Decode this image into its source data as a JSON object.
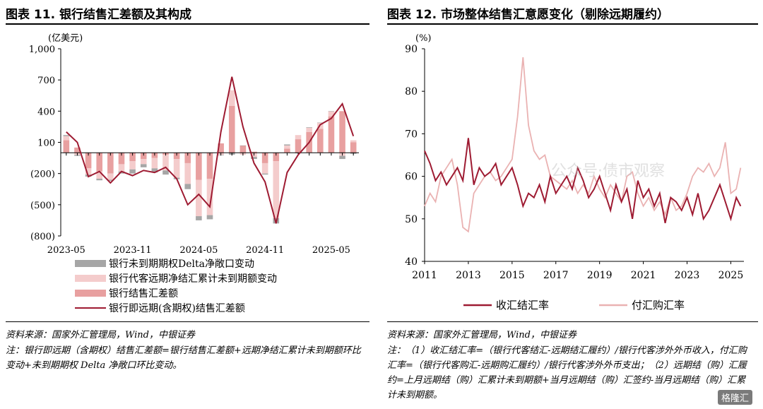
{
  "left": {
    "title": "图表 11. 银行结售汇差额及其构成",
    "source": "资料来源：国家外汇管理局，Wind，中银证券",
    "note": "注：银行即远期（含期权）结售汇差额=银行结售汇差额+远期净结汇累计未到期额环比变动+未到期期权 Delta 净敞口环比变动。"
  },
  "right": {
    "title": "图表 12. 市场整体结售汇意愿变化（剔除远期履约）",
    "source": "资料来源：国家外汇管理局，Wind，中银证券",
    "note": "注：（1）收汇结汇率=（银行代客结汇-远期结汇履约）/银行代客涉外外币收入，付汇购汇率=（银行代客购汇-远期购汇履约）/银行代客涉外外币支出；（2）远期结（购）汇履约=上月远期结（购）汇累计未到期额+当月远期结（购）汇签约-当月远期结（购）汇累计未到期额。"
  },
  "watermark": "公众号·债市观察",
  "logo": "格隆汇",
  "chart_data": [
    {
      "type": "bar",
      "unit": "(亿美元)",
      "categories": [
        "2023-05",
        "2023-06",
        "2023-07",
        "2023-08",
        "2023-09",
        "2023-10",
        "2023-11",
        "2023-12",
        "2024-01",
        "2024-02",
        "2024-03",
        "2024-04",
        "2024-05",
        "2024-06",
        "2024-07",
        "2024-08",
        "2024-09",
        "2024-10",
        "2024-11",
        "2024-12",
        "2025-01",
        "2025-02",
        "2025-03",
        "2025-04",
        "2025-05",
        "2025-06",
        "2025-07"
      ],
      "xticks": [
        "2023-05",
        "2023-11",
        "2024-05",
        "2024-11",
        "2025-05"
      ],
      "yticks": [
        1000,
        700,
        400,
        100,
        -200,
        -500,
        -800
      ],
      "ytick_labels": [
        "1,000",
        "700",
        "400",
        "100",
        "(200)",
        "(500)",
        "(800)"
      ],
      "ylim": [
        -800,
        1000
      ],
      "series": [
        {
          "name": "银行未到期期权Delta净敞口变动",
          "color": "#a6a6a6",
          "type": "bar",
          "values": [
            10,
            -10,
            -20,
            -15,
            -10,
            -20,
            -40,
            -30,
            -40,
            -40,
            -15,
            -50,
            -40,
            -40,
            -5,
            -20,
            0,
            -20,
            -10,
            -50,
            10,
            -5,
            5,
            0,
            0,
            -30,
            -10
          ]
        },
        {
          "name": "银行代客远期净结汇累计未到期额变动",
          "color": "#f4cccc",
          "type": "bar",
          "values": [
            40,
            -20,
            -60,
            -70,
            -60,
            -70,
            -80,
            -50,
            -100,
            -150,
            -180,
            -200,
            -350,
            -350,
            -20,
            150,
            -20,
            -40,
            -100,
            -550,
            30,
            40,
            40,
            60,
            50,
            -30,
            20
          ]
        },
        {
          "name": "银行结售汇差额",
          "color": "#e8a0a0",
          "type": "bar",
          "values": [
            120,
            50,
            -150,
            -180,
            -200,
            -110,
            -80,
            -60,
            -50,
            -20,
            -60,
            -100,
            -260,
            -250,
            90,
            450,
            70,
            10,
            -100,
            -80,
            40,
            130,
            200,
            230,
            350,
            400,
            100
          ]
        },
        {
          "name": "银行即远期(含期权)结售汇差额",
          "color": "#9e1b32",
          "type": "line",
          "values": [
            200,
            100,
            -230,
            -180,
            -290,
            -180,
            -220,
            -170,
            -190,
            -140,
            -250,
            -500,
            -400,
            -520,
            200,
            730,
            250,
            -100,
            -280,
            -680,
            -190,
            -20,
            100,
            270,
            330,
            470,
            160
          ]
        }
      ]
    },
    {
      "type": "line",
      "unit": "(%)",
      "xticks": [
        2011,
        2013,
        2015,
        2017,
        2019,
        2021,
        2023,
        2025
      ],
      "yticks": [
        90,
        80,
        70,
        60,
        50,
        40
      ],
      "ylim": [
        40,
        90
      ],
      "xlim": [
        2011,
        2025.6
      ],
      "series": [
        {
          "name": "收汇结汇率",
          "color": "#9e1b32",
          "x": [
            2011,
            2011.25,
            2011.5,
            2011.75,
            2012,
            2012.25,
            2012.5,
            2012.75,
            2013,
            2013.25,
            2013.5,
            2013.75,
            2014,
            2014.25,
            2014.5,
            2014.75,
            2015,
            2015.25,
            2015.5,
            2015.75,
            2016,
            2016.25,
            2016.5,
            2016.75,
            2017,
            2017.25,
            2017.5,
            2017.75,
            2018,
            2018.25,
            2018.5,
            2018.75,
            2019,
            2019.25,
            2019.5,
            2019.75,
            2020,
            2020.25,
            2020.5,
            2020.75,
            2021,
            2021.25,
            2021.5,
            2021.75,
            2022,
            2022.25,
            2022.5,
            2022.75,
            2023,
            2023.25,
            2023.5,
            2023.75,
            2024,
            2024.25,
            2024.5,
            2024.75,
            2025,
            2025.25,
            2025.45
          ],
          "y": [
            66,
            63,
            59,
            61,
            58,
            60,
            62,
            59,
            69,
            58,
            62,
            60,
            61,
            63,
            58,
            60,
            62,
            58,
            53,
            56,
            55,
            58,
            54,
            60,
            56,
            58,
            60,
            57,
            62,
            59,
            55,
            57,
            60,
            56,
            52,
            58,
            54,
            57,
            50,
            59,
            55,
            57,
            53,
            56,
            49,
            55,
            54,
            52,
            55,
            51,
            56,
            50,
            52,
            55,
            58,
            54,
            50,
            55,
            53
          ]
        },
        {
          "name": "付汇购汇率",
          "color": "#eab2b2",
          "x": [
            2011,
            2011.25,
            2011.5,
            2011.75,
            2012,
            2012.25,
            2012.5,
            2012.75,
            2013,
            2013.25,
            2013.5,
            2013.75,
            2014,
            2014.25,
            2014.5,
            2014.75,
            2015,
            2015.25,
            2015.5,
            2015.75,
            2016,
            2016.25,
            2016.5,
            2016.75,
            2017,
            2017.25,
            2017.5,
            2017.75,
            2018,
            2018.25,
            2018.5,
            2018.75,
            2019,
            2019.25,
            2019.5,
            2019.75,
            2020,
            2020.25,
            2020.5,
            2020.75,
            2021,
            2021.25,
            2021.5,
            2021.75,
            2022,
            2022.25,
            2022.5,
            2022.75,
            2023,
            2023.25,
            2023.5,
            2023.75,
            2024,
            2024.25,
            2024.5,
            2024.75,
            2025,
            2025.25,
            2025.45
          ],
          "y": [
            53,
            56,
            54,
            60,
            62,
            64,
            58,
            48,
            47,
            56,
            58,
            60,
            61,
            59,
            60,
            62,
            64,
            74,
            88,
            72,
            66,
            64,
            65,
            60,
            59,
            58,
            57,
            59,
            56,
            58,
            56,
            60,
            57,
            55,
            58,
            56,
            54,
            60,
            61,
            56,
            53,
            55,
            52,
            54,
            51,
            55,
            52,
            53,
            56,
            60,
            62,
            61,
            63,
            60,
            62,
            68,
            56,
            57,
            62
          ]
        }
      ]
    }
  ]
}
